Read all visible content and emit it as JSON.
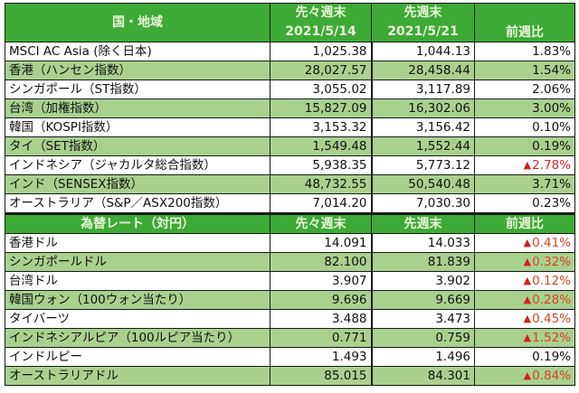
{
  "index_table": {
    "headers": {
      "region": "国・地域",
      "prev2_week_label": "先々週末",
      "prev2_week_date": "2021/5/14",
      "prev_week_label": "先週末",
      "prev_week_date": "2021/5/21",
      "change": "前週比"
    },
    "rows": [
      {
        "name": "MSCI AC Asia (除く日本)",
        "v1": "1,025.38",
        "v2": "1,044.13",
        "chg": "1.83%",
        "negative": false
      },
      {
        "name": "香港（ハンセン指数）",
        "v1": "28,027.57",
        "v2": "28,458.44",
        "chg": "1.54%",
        "negative": false
      },
      {
        "name": "シンガポール（ST指数）",
        "v1": "3,055.02",
        "v2": "3,117.89",
        "chg": "2.06%",
        "negative": false
      },
      {
        "name": "台湾（加権指数）",
        "v1": "15,827.09",
        "v2": "16,302.06",
        "chg": "3.00%",
        "negative": false
      },
      {
        "name": "韓国（KOSPI指数）",
        "v1": "3,153.32",
        "v2": "3,156.42",
        "chg": "0.10%",
        "negative": false
      },
      {
        "name": "タイ（SET指数）",
        "v1": "1,549.48",
        "v2": "1,552.44",
        "chg": "0.19%",
        "negative": false
      },
      {
        "name": "インドネシア（ジャカルタ総合指数）",
        "v1": "5,938.35",
        "v2": "5,773.12",
        "chg": "2.78%",
        "negative": true
      },
      {
        "name": "インド（SENSEX指数）",
        "v1": "48,732.55",
        "v2": "50,540.48",
        "chg": "3.71%",
        "negative": false
      },
      {
        "name": "オーストラリア（S&P／ASX200指数）",
        "v1": "7,014.20",
        "v2": "7,030.30",
        "chg": "0.23%",
        "negative": false
      }
    ]
  },
  "fx_table": {
    "headers": {
      "currency": "為替レート（対円）",
      "prev2_week_label": "先々週末",
      "prev_week_label": "先週末",
      "change": "前週比"
    },
    "rows": [
      {
        "name": "香港ドル",
        "v1": "14.091",
        "v2": "14.033",
        "chg": "0.41%",
        "negative": true
      },
      {
        "name": "シンガポールドル",
        "v1": "82.100",
        "v2": "81.839",
        "chg": "0.32%",
        "negative": true
      },
      {
        "name": "台湾ドル",
        "v1": "3.907",
        "v2": "3.902",
        "chg": "0.12%",
        "negative": true
      },
      {
        "name": "韓国ウォン（100ウォン当たり）",
        "v1": "9.696",
        "v2": "9.669",
        "chg": "0.28%",
        "negative": true
      },
      {
        "name": "タイバーツ",
        "v1": "3.488",
        "v2": "3.473",
        "chg": "0.45%",
        "negative": true
      },
      {
        "name": "インドネシアルピア（100ルピア当たり）",
        "v1": "0.771",
        "v2": "0.759",
        "chg": "1.52%",
        "negative": true
      },
      {
        "name": "インドルピー",
        "v1": "1.493",
        "v2": "1.496",
        "chg": "0.19%",
        "negative": false
      },
      {
        "name": "オーストラリアドル",
        "v1": "85.015",
        "v2": "84.301",
        "chg": "0.84%",
        "negative": true
      }
    ]
  },
  "symbols": {
    "negative_marker": "▲"
  },
  "colors": {
    "header_bg": "#3daa36",
    "header_text": "#e9f7d8",
    "alt_row_bg": "#a9d18e",
    "negative_text": "#d02a2a"
  }
}
